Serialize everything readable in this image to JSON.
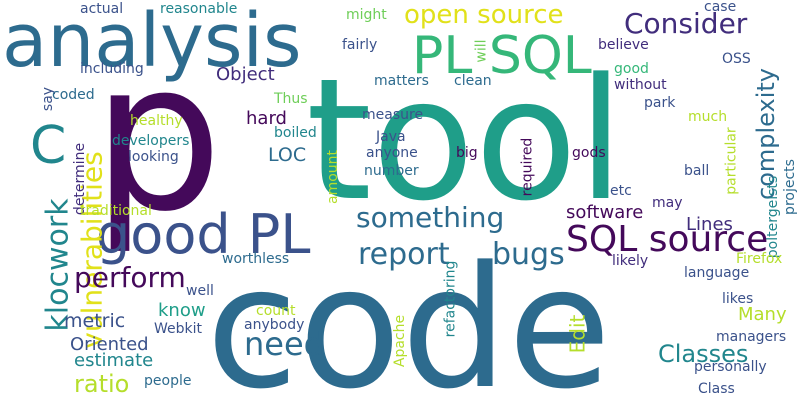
{
  "palette": {
    "background": "#ffffff",
    "dark_purple": "#44095a",
    "purple": "#412d7c",
    "indigo": "#3b528b",
    "blue": "#2d6b8e",
    "teal_blue": "#21868d",
    "teal": "#1f9e89",
    "green": "#35b779",
    "light_green": "#6ece58",
    "yellow_green": "#b5de2b",
    "yellow": "#e1e11a"
  },
  "words": [
    {
      "text": "code"
    },
    {
      "text": "tool"
    },
    {
      "text": "p"
    },
    {
      "text": "analysis"
    },
    {
      "text": "good PL"
    },
    {
      "text": "PL SQL"
    },
    {
      "text": "SQL source"
    },
    {
      "text": "C"
    },
    {
      "text": "vulnerabilities"
    },
    {
      "text": "klocwork"
    },
    {
      "text": "something"
    },
    {
      "text": "open source"
    },
    {
      "text": "Consider"
    },
    {
      "text": "complexity"
    },
    {
      "text": "report"
    },
    {
      "text": "bugs"
    },
    {
      "text": "perform"
    },
    {
      "text": "need"
    },
    {
      "text": "ratio"
    },
    {
      "text": "Classes"
    },
    {
      "text": "metric"
    },
    {
      "text": "Oriented"
    },
    {
      "text": "estimate"
    },
    {
      "text": "software"
    },
    {
      "text": "Lines"
    },
    {
      "text": "Object"
    },
    {
      "text": "LOC"
    },
    {
      "text": "hard"
    },
    {
      "text": "know"
    },
    {
      "text": "Many"
    },
    {
      "text": "Edit"
    },
    {
      "text": "reasonable"
    },
    {
      "text": "actual"
    },
    {
      "text": "might"
    },
    {
      "text": "fairly"
    },
    {
      "text": "will"
    },
    {
      "text": "believe"
    },
    {
      "text": "case"
    },
    {
      "text": "OSS"
    },
    {
      "text": "projects"
    },
    {
      "text": "good"
    },
    {
      "text": "without"
    },
    {
      "text": "park"
    },
    {
      "text": "much"
    },
    {
      "text": "particular"
    },
    {
      "text": "say"
    },
    {
      "text": "coded"
    },
    {
      "text": "including"
    },
    {
      "text": "matters"
    },
    {
      "text": "clean"
    },
    {
      "text": "healthy"
    },
    {
      "text": "Thus"
    },
    {
      "text": "measure"
    },
    {
      "text": "boiled"
    },
    {
      "text": "developers"
    },
    {
      "text": "Java"
    },
    {
      "text": "anyone"
    },
    {
      "text": "big"
    },
    {
      "text": "gods"
    },
    {
      "text": "looking"
    },
    {
      "text": "amount"
    },
    {
      "text": "number"
    },
    {
      "text": "required"
    },
    {
      "text": "ball"
    },
    {
      "text": "determine"
    },
    {
      "text": "etc"
    },
    {
      "text": "traditional"
    },
    {
      "text": "poltergeists"
    },
    {
      "text": "may"
    },
    {
      "text": "well"
    },
    {
      "text": "worthless"
    },
    {
      "text": "likely"
    },
    {
      "text": "language"
    },
    {
      "text": "Firefox"
    },
    {
      "text": "likes"
    },
    {
      "text": "count"
    },
    {
      "text": "anybody"
    },
    {
      "text": "refactoring"
    },
    {
      "text": "Apache"
    },
    {
      "text": "Webkit"
    },
    {
      "text": "managers"
    },
    {
      "text": "people"
    },
    {
      "text": "personally"
    },
    {
      "text": "Class"
    }
  ]
}
